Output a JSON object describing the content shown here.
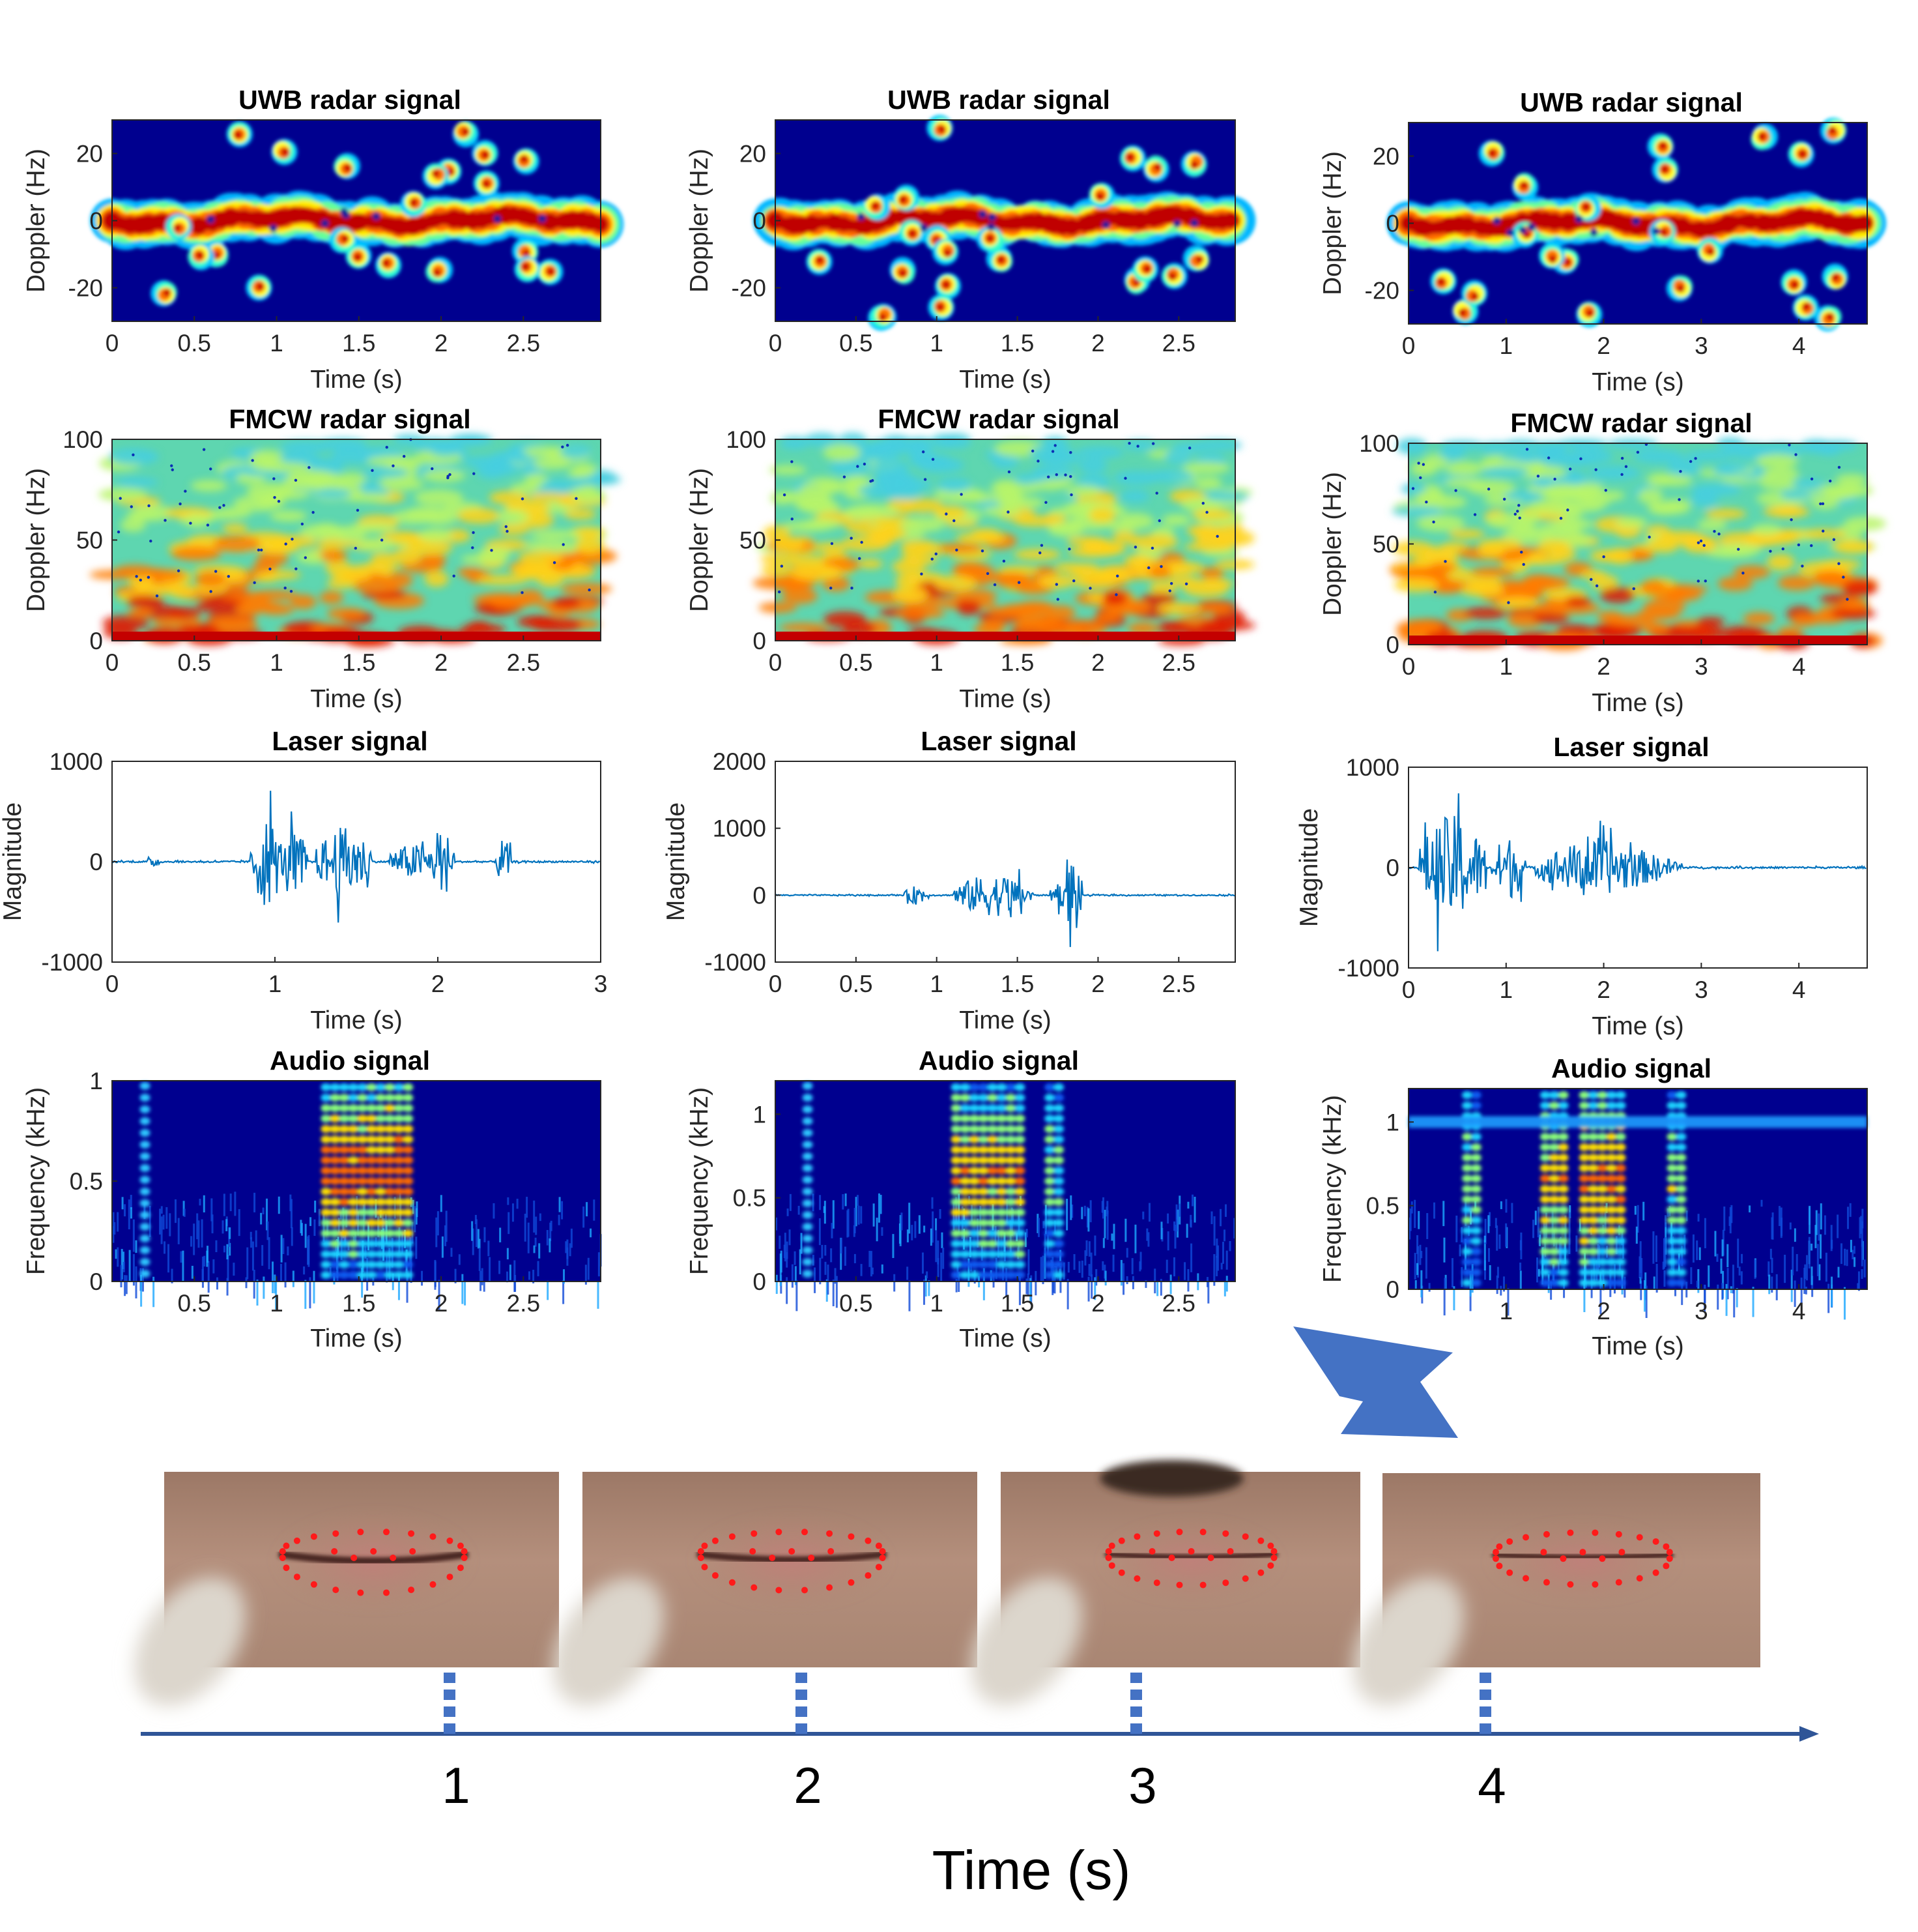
{
  "colors": {
    "jet_low": "#00008f",
    "signal": "#0072bd",
    "accent": "#4472c4",
    "landmark": "#ff1a1a",
    "skin": "#b08a76"
  },
  "chart_data": [
    {
      "type": "heatmap",
      "title": "UWB radar signal",
      "xlabel": "Time (s)",
      "ylabel": "Doppler (Hz)",
      "xlim": [
        0,
        2.97
      ],
      "ylim": [
        -30,
        30
      ],
      "xticks": [
        "0",
        "0.5",
        "1",
        "1.5",
        "2",
        "2.5"
      ],
      "yticks": [
        "-20",
        "0",
        "20"
      ]
    },
    {
      "type": "heatmap",
      "title": "UWB radar signal",
      "xlabel": "Time (s)",
      "ylabel": "Doppler (Hz)",
      "xlim": [
        0,
        2.85
      ],
      "ylim": [
        -30,
        30
      ],
      "xticks": [
        "0",
        "0.5",
        "1",
        "1.5",
        "2",
        "2.5"
      ],
      "yticks": [
        "-20",
        "0",
        "20"
      ]
    },
    {
      "type": "heatmap",
      "title": "UWB radar signal",
      "xlabel": "Time (s)",
      "ylabel": "Doppler (Hz)",
      "xlim": [
        0,
        4.7
      ],
      "ylim": [
        -30,
        30
      ],
      "xticks": [
        "0",
        "1",
        "2",
        "3",
        "4"
      ],
      "yticks": [
        "-20",
        "0",
        "20"
      ]
    },
    {
      "type": "heatmap",
      "title": "FMCW radar signal",
      "xlabel": "Time (s)",
      "ylabel": "Doppler (Hz)",
      "xlim": [
        0,
        2.97
      ],
      "ylim": [
        0,
        100
      ],
      "xticks": [
        "0",
        "0.5",
        "1",
        "1.5",
        "2",
        "2.5"
      ],
      "yticks": [
        "0",
        "50",
        "100"
      ]
    },
    {
      "type": "heatmap",
      "title": "FMCW radar signal",
      "xlabel": "Time (s)",
      "ylabel": "Doppler (Hz)",
      "xlim": [
        0,
        2.85
      ],
      "ylim": [
        0,
        100
      ],
      "xticks": [
        "0",
        "0.5",
        "1",
        "1.5",
        "2",
        "2.5"
      ],
      "yticks": [
        "0",
        "50",
        "100"
      ]
    },
    {
      "type": "heatmap",
      "title": "FMCW radar signal",
      "xlabel": "Time (s)",
      "ylabel": "Doppler (Hz)",
      "xlim": [
        0,
        4.7
      ],
      "ylim": [
        0,
        100
      ],
      "xticks": [
        "0",
        "1",
        "2",
        "3",
        "4"
      ],
      "yticks": [
        "0",
        "50",
        "100"
      ]
    },
    {
      "type": "line",
      "title": "Laser signal",
      "xlabel": "Time (s)",
      "ylabel": "Magnitude",
      "xlim": [
        0,
        3
      ],
      "ylim": [
        -1000,
        1000
      ],
      "xticks": [
        "0",
        "1",
        "2",
        "3"
      ],
      "yticks": [
        "-1000",
        "0",
        "1000"
      ]
    },
    {
      "type": "line",
      "title": "Laser signal",
      "xlabel": "Time (s)",
      "ylabel": "Magnitude",
      "xlim": [
        0,
        2.85
      ],
      "ylim": [
        -1000,
        2000
      ],
      "xticks": [
        "0",
        "0.5",
        "1",
        "1.5",
        "2",
        "2.5"
      ],
      "yticks": [
        "-1000",
        "0",
        "1000",
        "2000"
      ]
    },
    {
      "type": "line",
      "title": "Laser signal",
      "xlabel": "Time (s)",
      "ylabel": "Magnitude",
      "xlim": [
        0,
        4.7
      ],
      "ylim": [
        -1000,
        1000
      ],
      "xticks": [
        "0",
        "1",
        "2",
        "3",
        "4"
      ],
      "yticks": [
        "-1000",
        "0",
        "1000"
      ]
    },
    {
      "type": "heatmap",
      "title": "Audio signal",
      "xlabel": "Time (s)",
      "ylabel": "Frequency (kHz)",
      "xlim": [
        0,
        2.97
      ],
      "ylim": [
        0,
        1
      ],
      "xticks": [
        "0.5",
        "1",
        "1.5",
        "2",
        "2.5"
      ],
      "yticks": [
        "0",
        "0.5",
        "1"
      ]
    },
    {
      "type": "heatmap",
      "title": "Audio signal",
      "xlabel": "Time (s)",
      "ylabel": "Frequency (kHz)",
      "xlim": [
        0,
        2.85
      ],
      "ylim": [
        0,
        1.2
      ],
      "xticks": [
        "0.5",
        "1",
        "1.5",
        "2",
        "2.5"
      ],
      "yticks": [
        "0",
        "0.5",
        "1"
      ]
    },
    {
      "type": "heatmap",
      "title": "Audio signal",
      "xlabel": "Time (s)",
      "ylabel": "Frequency (kHz)",
      "xlim": [
        0,
        4.7
      ],
      "ylim": [
        0,
        1.2
      ],
      "xticks": [
        "1",
        "2",
        "3",
        "4"
      ],
      "yticks": [
        "0",
        "0.5",
        "1"
      ]
    }
  ],
  "timeline": {
    "ticks": [
      "1",
      "2",
      "3",
      "4"
    ],
    "label": "Time (s)"
  }
}
